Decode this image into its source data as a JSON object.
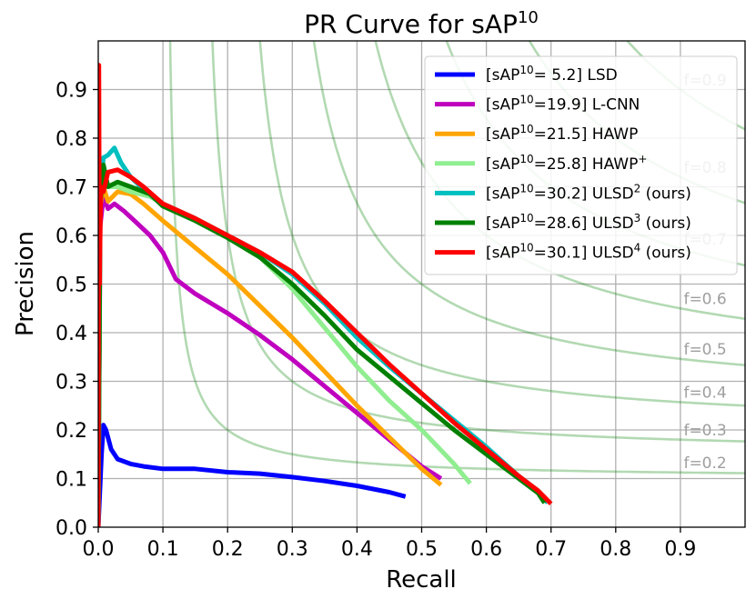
{
  "chart_data": {
    "type": "line",
    "title": "PR Curve for sAP",
    "title_sup": "10",
    "xlabel": "Recall",
    "ylabel": "Precision",
    "xlim": [
      0,
      1.0
    ],
    "ylim": [
      0,
      1.0
    ],
    "grid": true,
    "legend_position": "top-right",
    "x_ticks": [
      "0.0",
      "0.1",
      "0.2",
      "0.3",
      "0.4",
      "0.5",
      "0.6",
      "0.7",
      "0.8",
      "0.9"
    ],
    "y_ticks": [
      "0.0",
      "0.1",
      "0.2",
      "0.3",
      "0.4",
      "0.5",
      "0.6",
      "0.7",
      "0.8",
      "0.9"
    ],
    "iso_f_curves": [
      {
        "f": 0.2,
        "label": "f=0.2"
      },
      {
        "f": 0.3,
        "label": "f=0.3"
      },
      {
        "f": 0.4,
        "label": "f=0.4"
      },
      {
        "f": 0.5,
        "label": "f=0.5"
      },
      {
        "f": 0.6,
        "label": "f=0.6"
      },
      {
        "f": 0.7,
        "label": "f=0.7"
      },
      {
        "f": 0.8,
        "label": "f=0.8"
      },
      {
        "f": 0.9,
        "label": "f=0.9"
      }
    ],
    "series": [
      {
        "name": "LSD",
        "legend_pre": "[sAP",
        "legend_sup": "10",
        "legend_post": "= 5.2] LSD",
        "color": "#0000ff",
        "points": [
          [
            0.0,
            0.0
          ],
          [
            0.005,
            0.15
          ],
          [
            0.008,
            0.21
          ],
          [
            0.012,
            0.2
          ],
          [
            0.02,
            0.16
          ],
          [
            0.03,
            0.14
          ],
          [
            0.05,
            0.13
          ],
          [
            0.07,
            0.125
          ],
          [
            0.1,
            0.12
          ],
          [
            0.15,
            0.12
          ],
          [
            0.2,
            0.113
          ],
          [
            0.25,
            0.11
          ],
          [
            0.3,
            0.103
          ],
          [
            0.35,
            0.095
          ],
          [
            0.4,
            0.085
          ],
          [
            0.45,
            0.072
          ],
          [
            0.475,
            0.063
          ]
        ]
      },
      {
        "name": "L-CNN",
        "legend_pre": "[sAP",
        "legend_sup": "10",
        "legend_post": "=19.9] L-CNN",
        "color": "#bf00bf",
        "points": [
          [
            0.0,
            0.0
          ],
          [
            0.003,
            0.62
          ],
          [
            0.008,
            0.68
          ],
          [
            0.015,
            0.655
          ],
          [
            0.025,
            0.665
          ],
          [
            0.04,
            0.65
          ],
          [
            0.06,
            0.625
          ],
          [
            0.08,
            0.6
          ],
          [
            0.1,
            0.565
          ],
          [
            0.12,
            0.51
          ],
          [
            0.15,
            0.48
          ],
          [
            0.2,
            0.44
          ],
          [
            0.25,
            0.395
          ],
          [
            0.3,
            0.345
          ],
          [
            0.35,
            0.29
          ],
          [
            0.4,
            0.235
          ],
          [
            0.45,
            0.18
          ],
          [
            0.5,
            0.125
          ],
          [
            0.53,
            0.1
          ]
        ]
      },
      {
        "name": "HAWP",
        "legend_pre": "[sAP",
        "legend_sup": "10",
        "legend_post": "=21.5] HAWP",
        "color": "#ffa500",
        "points": [
          [
            0.0,
            0.0
          ],
          [
            0.003,
            0.66
          ],
          [
            0.008,
            0.7
          ],
          [
            0.015,
            0.67
          ],
          [
            0.03,
            0.69
          ],
          [
            0.05,
            0.685
          ],
          [
            0.07,
            0.665
          ],
          [
            0.1,
            0.63
          ],
          [
            0.15,
            0.575
          ],
          [
            0.2,
            0.52
          ],
          [
            0.25,
            0.455
          ],
          [
            0.3,
            0.39
          ],
          [
            0.35,
            0.32
          ],
          [
            0.4,
            0.25
          ],
          [
            0.45,
            0.185
          ],
          [
            0.5,
            0.12
          ],
          [
            0.53,
            0.087
          ]
        ]
      },
      {
        "name": "HAWP+",
        "legend_pre": "[sAP",
        "legend_sup": "10",
        "legend_post": "=25.8] HAWP",
        "legend_post_sup": "+",
        "color": "#90ee90",
        "points": [
          [
            0.0,
            0.0
          ],
          [
            0.003,
            0.68
          ],
          [
            0.008,
            0.72
          ],
          [
            0.015,
            0.7
          ],
          [
            0.03,
            0.7
          ],
          [
            0.05,
            0.69
          ],
          [
            0.08,
            0.68
          ],
          [
            0.1,
            0.665
          ],
          [
            0.15,
            0.635
          ],
          [
            0.2,
            0.6
          ],
          [
            0.25,
            0.555
          ],
          [
            0.3,
            0.49
          ],
          [
            0.35,
            0.41
          ],
          [
            0.4,
            0.33
          ],
          [
            0.45,
            0.26
          ],
          [
            0.5,
            0.2
          ],
          [
            0.55,
            0.13
          ],
          [
            0.575,
            0.09
          ]
        ]
      },
      {
        "name": "ULSD2",
        "legend_pre": "[sAP",
        "legend_sup": "10",
        "legend_post": "=30.2] ULSD",
        "legend_post_sup": "2",
        "legend_tail": " (ours)",
        "color": "#00bfbf",
        "points": [
          [
            0.0,
            0.0
          ],
          [
            0.003,
            0.7
          ],
          [
            0.008,
            0.76
          ],
          [
            0.015,
            0.765
          ],
          [
            0.025,
            0.78
          ],
          [
            0.035,
            0.75
          ],
          [
            0.05,
            0.72
          ],
          [
            0.07,
            0.695
          ],
          [
            0.1,
            0.665
          ],
          [
            0.15,
            0.635
          ],
          [
            0.2,
            0.6
          ],
          [
            0.25,
            0.565
          ],
          [
            0.3,
            0.52
          ],
          [
            0.35,
            0.46
          ],
          [
            0.4,
            0.39
          ],
          [
            0.45,
            0.33
          ],
          [
            0.5,
            0.275
          ],
          [
            0.55,
            0.22
          ],
          [
            0.6,
            0.165
          ],
          [
            0.65,
            0.105
          ],
          [
            0.68,
            0.075
          ],
          [
            0.695,
            0.05
          ]
        ]
      },
      {
        "name": "ULSD3",
        "legend_pre": "[sAP",
        "legend_sup": "10",
        "legend_post": "=28.6] ULSD",
        "legend_post_sup": "3",
        "legend_tail": " (ours)",
        "color": "#008000",
        "points": [
          [
            0.0,
            0.0
          ],
          [
            0.003,
            0.66
          ],
          [
            0.008,
            0.745
          ],
          [
            0.015,
            0.7
          ],
          [
            0.03,
            0.71
          ],
          [
            0.05,
            0.7
          ],
          [
            0.08,
            0.685
          ],
          [
            0.1,
            0.66
          ],
          [
            0.15,
            0.63
          ],
          [
            0.2,
            0.595
          ],
          [
            0.25,
            0.555
          ],
          [
            0.3,
            0.5
          ],
          [
            0.35,
            0.435
          ],
          [
            0.4,
            0.365
          ],
          [
            0.45,
            0.31
          ],
          [
            0.5,
            0.255
          ],
          [
            0.55,
            0.2
          ],
          [
            0.6,
            0.15
          ],
          [
            0.65,
            0.1
          ],
          [
            0.68,
            0.07
          ],
          [
            0.69,
            0.05
          ]
        ]
      },
      {
        "name": "ULSD4",
        "legend_pre": "[sAP",
        "legend_sup": "10",
        "legend_post": "=30.1] ULSD",
        "legend_post_sup": "4",
        "legend_tail": " (ours)",
        "color": "#ff0000",
        "points": [
          [
            0.0,
            0.0
          ],
          [
            0.001,
            0.95
          ],
          [
            0.002,
            0.5
          ],
          [
            0.004,
            0.7
          ],
          [
            0.008,
            0.69
          ],
          [
            0.015,
            0.73
          ],
          [
            0.03,
            0.735
          ],
          [
            0.05,
            0.72
          ],
          [
            0.07,
            0.7
          ],
          [
            0.1,
            0.665
          ],
          [
            0.15,
            0.635
          ],
          [
            0.2,
            0.6
          ],
          [
            0.25,
            0.565
          ],
          [
            0.3,
            0.525
          ],
          [
            0.35,
            0.465
          ],
          [
            0.4,
            0.4
          ],
          [
            0.45,
            0.335
          ],
          [
            0.5,
            0.275
          ],
          [
            0.55,
            0.215
          ],
          [
            0.6,
            0.16
          ],
          [
            0.65,
            0.105
          ],
          [
            0.68,
            0.075
          ],
          [
            0.7,
            0.048
          ]
        ]
      }
    ]
  }
}
